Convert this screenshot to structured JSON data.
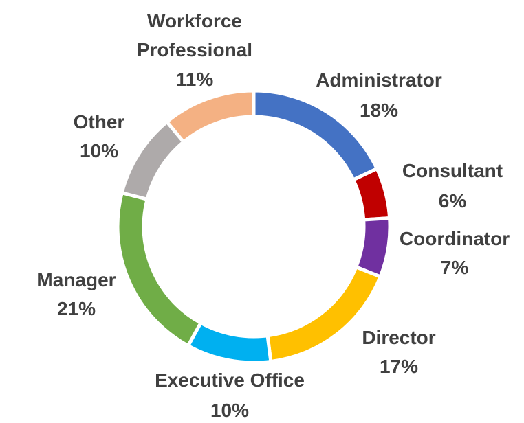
{
  "chart_data": {
    "type": "pie",
    "variant": "donut",
    "title": "",
    "categories": [
      "Administrator",
      "Consultant",
      "Coordinator",
      "Director",
      "Executive Office",
      "Manager",
      "Other",
      "Workforce Professional"
    ],
    "values": [
      18,
      6,
      7,
      17,
      10,
      21,
      10,
      11
    ],
    "value_labels": [
      "18%",
      "6%",
      "7%",
      "17%",
      "10%",
      "21%",
      "10%",
      "11%"
    ],
    "colors": [
      "#4472C4",
      "#C00000",
      "#7030A0",
      "#FFC000",
      "#00B0F0",
      "#70AD47",
      "#AEAAAA",
      "#F4B183"
    ],
    "legend": "none",
    "data_labels": "outside"
  }
}
